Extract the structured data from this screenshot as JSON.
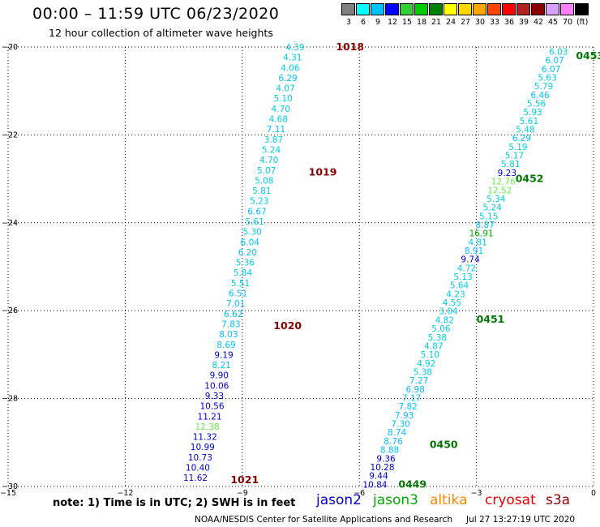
{
  "header": {
    "title": "00:00 – 11:59 UTC 06/23/2020",
    "subtitle": "12 hour collection of altimeter wave heights"
  },
  "color_scale": {
    "unit": "(ft)",
    "bins": [
      {
        "label": "3",
        "color": "#808080"
      },
      {
        "label": "6",
        "color": "#00ffff"
      },
      {
        "label": "9",
        "color": "#00bfff"
      },
      {
        "label": "12",
        "color": "#0000ff"
      },
      {
        "label": "15",
        "color": "#32cd32"
      },
      {
        "label": "18",
        "color": "#00cc00"
      },
      {
        "label": "21",
        "color": "#008000"
      },
      {
        "label": "24",
        "color": "#ffff00"
      },
      {
        "label": "27",
        "color": "#ffd700"
      },
      {
        "label": "30",
        "color": "#ffa500"
      },
      {
        "label": "33",
        "color": "#ff4500"
      },
      {
        "label": "36",
        "color": "#ff0000"
      },
      {
        "label": "39",
        "color": "#b22222"
      },
      {
        "label": "42",
        "color": "#8b0000"
      },
      {
        "label": "45",
        "color": "#d8a0ff"
      },
      {
        "label": "70",
        "color": "#ff80ff"
      },
      {
        "label": "",
        "color": "#000000"
      }
    ]
  },
  "chart_data": {
    "type": "scatter",
    "xlim": [
      -15,
      0
    ],
    "ylim": [
      -30,
      -20
    ],
    "x_ticks": [
      -15,
      -12,
      -9,
      -6,
      -3,
      0
    ],
    "y_ticks": [
      -20,
      -22,
      -24,
      -26,
      -28,
      -30
    ],
    "x_tick_labels": [
      "−15",
      "−12",
      "−9",
      "−6",
      "−3",
      "0"
    ],
    "y_tick_labels": [
      "−20",
      "−22",
      "−24",
      "−26",
      "−28",
      "−30"
    ],
    "grid": true,
    "tracks": [
      {
        "name": "west",
        "top": {
          "lat": -20.0,
          "lon": -7.65
        },
        "bottom": {
          "lat": -29.8,
          "lon": -10.2
        },
        "values": [
          "4.39",
          "4.31",
          "4.06",
          "6.29",
          "4.07",
          "5.10",
          "4.70",
          "4.68",
          "7.11",
          "3.87",
          "5.24",
          "4.70",
          "5.07",
          "5.08",
          "5.81",
          "5.23",
          "6.67",
          "5.61",
          "5.30",
          "6.04",
          "6.20",
          "5.36",
          "5.84",
          "5.51",
          "6.51",
          "7.01",
          "6.62",
          "7.83",
          "8.03",
          "8.69",
          "9.19",
          "8.21",
          "9.90",
          "10.06",
          "9.33",
          "10.56",
          "11.21",
          "12.38",
          "11.32",
          "10.99",
          "10.73",
          "10.40",
          "11.62"
        ],
        "colors": [
          "#00ccdd",
          "#00ccdd",
          "#00ccdd",
          "#00bfff",
          "#00ccdd",
          "#00ccdd",
          "#00ccdd",
          "#00ccdd",
          "#00bfff",
          "#00ccdd",
          "#00ccdd",
          "#00ccdd",
          "#00ccdd",
          "#00ccdd",
          "#00ccdd",
          "#00ccdd",
          "#00bfff",
          "#00ccdd",
          "#00ccdd",
          "#00bfff",
          "#00bfff",
          "#00ccdd",
          "#00ccdd",
          "#00ccdd",
          "#00bfff",
          "#00bfff",
          "#00bfff",
          "#00bfff",
          "#00bfff",
          "#00bfff",
          "#0000cc",
          "#00bfff",
          "#0000cc",
          "#0000cc",
          "#0000cc",
          "#0000cc",
          "#0000cc",
          "#66ee44",
          "#0000cc",
          "#0000cc",
          "#0000cc",
          "#0000cc",
          "#0000cc"
        ]
      },
      {
        "name": "east",
        "top": {
          "lat": -20.1,
          "lon": -0.9
        },
        "bottom": {
          "lat": -29.95,
          "lon": -5.6
        },
        "values": [
          "6.03",
          "6.07",
          "6.07",
          "5.63",
          "5.79",
          "6.46",
          "5.56",
          "5.93",
          "5.61",
          "5.48",
          "6.29",
          "5.19",
          "5.17",
          "5.81",
          "9.23",
          "12.76",
          "12.52",
          "5.34",
          "5.24",
          "5.15",
          "8.87",
          "16.91",
          "4.81",
          "8.91",
          "9.74",
          "4.72",
          "5.13",
          "5.64",
          "4.23",
          "4.55",
          "3.04",
          "4.82",
          "5.06",
          "5.38",
          "4.87",
          "5.10",
          "4.92",
          "5.38",
          "7.27",
          "6.98",
          "7.17",
          "7.82",
          "7.93",
          "7.30",
          "8.74",
          "8.76",
          "8.88",
          "9.36",
          "10.28",
          "9.44",
          "10.84"
        ],
        "colors": [
          "#00ccdd",
          "#00bfff",
          "#00bfff",
          "#00ccdd",
          "#00ccdd",
          "#00bfff",
          "#00ccdd",
          "#00ccdd",
          "#00ccdd",
          "#00ccdd",
          "#00bfff",
          "#00ccdd",
          "#00ccdd",
          "#00ccdd",
          "#0000cc",
          "#66ee44",
          "#66ee44",
          "#00ccdd",
          "#00ccdd",
          "#00ccdd",
          "#00bfff",
          "#00aa00",
          "#00ccdd",
          "#00bfff",
          "#0000cc",
          "#00ccdd",
          "#00ccdd",
          "#00ccdd",
          "#00ccdd",
          "#00ccdd",
          "#00ccdd",
          "#00ccdd",
          "#00ccdd",
          "#00ccdd",
          "#00ccdd",
          "#00ccdd",
          "#00ccdd",
          "#00ccdd",
          "#00bfff",
          "#00bfff",
          "#00bfff",
          "#00bfff",
          "#00bfff",
          "#00bfff",
          "#00bfff",
          "#00bfff",
          "#00bfff",
          "#0000cc",
          "#0000cc",
          "#0000cc",
          "#0000cc"
        ]
      }
    ],
    "time_labels": [
      {
        "text": "1018",
        "lat": -20.0,
        "lon": -6.6,
        "color": "#880000"
      },
      {
        "text": "1019",
        "lat": -22.85,
        "lon": -7.3,
        "color": "#880000"
      },
      {
        "text": "1020",
        "lat": -26.35,
        "lon": -8.2,
        "color": "#880000"
      },
      {
        "text": "1021",
        "lat": -29.85,
        "lon": -9.3,
        "color": "#880000"
      },
      {
        "text": "0453",
        "lat": -20.2,
        "lon": -0.45,
        "color": "#007700"
      },
      {
        "text": "0452",
        "lat": -23.0,
        "lon": -2.0,
        "color": "#007700"
      },
      {
        "text": "0451",
        "lat": -26.2,
        "lon": -3.0,
        "color": "#007700"
      },
      {
        "text": "0450",
        "lat": -29.05,
        "lon": -4.2,
        "color": "#007700"
      },
      {
        "text": "0449",
        "lat": -29.95,
        "lon": -5.0,
        "color": "#007700"
      }
    ]
  },
  "footer": {
    "note": "note: 1) Time is in UTC; 2) SWH is in feet",
    "legend": [
      {
        "label": "jason2",
        "color": "#0000cc"
      },
      {
        "label": "jason3",
        "color": "#00aa00"
      },
      {
        "label": "altika",
        "color": "#ff8800"
      },
      {
        "label": "cryosat",
        "color": "#ee0000"
      },
      {
        "label": "s3a",
        "color": "#880000"
      }
    ],
    "credit": "NOAA/NESDIS Center for Satellite Applications and Research",
    "timestamp": "Jul 27 13:27:19 UTC 2020"
  }
}
